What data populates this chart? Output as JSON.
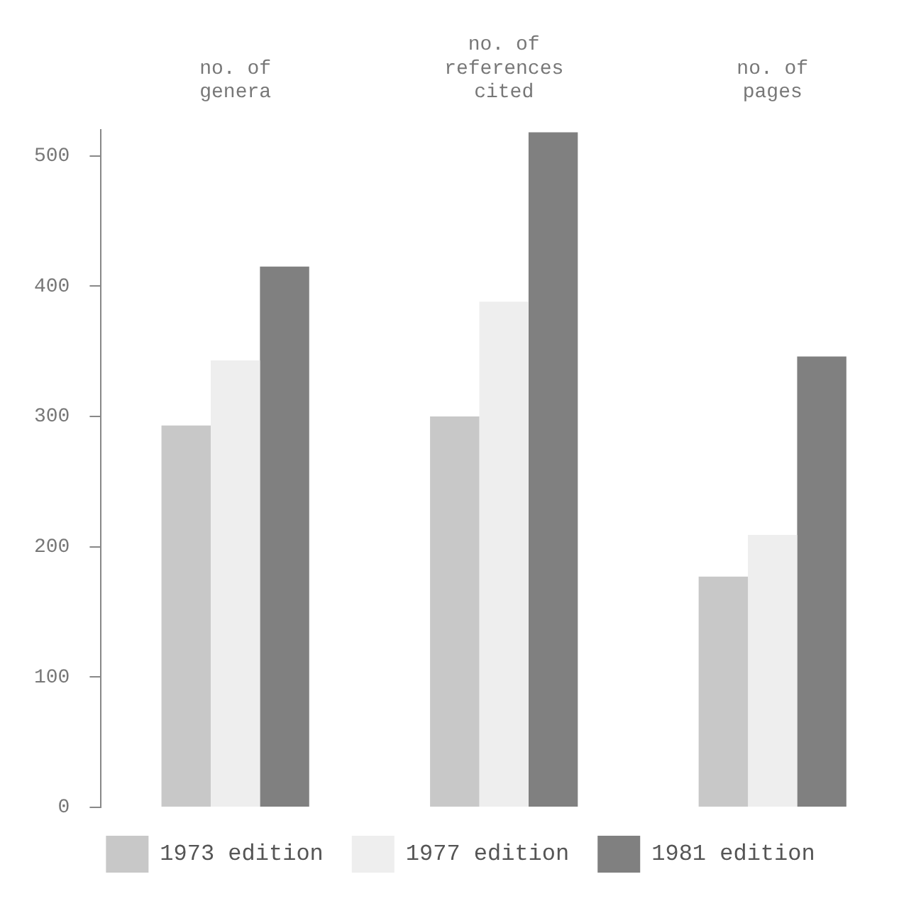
{
  "chart_data": {
    "type": "bar",
    "categories": [
      "no. of genera",
      "no. of references cited",
      "no. of pages"
    ],
    "series": [
      {
        "name": "1973 edition",
        "color": "#c8c8c8",
        "values": [
          293,
          300,
          177
        ]
      },
      {
        "name": "1977 edition",
        "color": "#eeeeee",
        "values": [
          343,
          388,
          209
        ]
      },
      {
        "name": "1981 edition",
        "color": "#808080",
        "values": [
          415,
          518,
          346
        ]
      }
    ],
    "ylim": [
      0,
      520
    ],
    "yticks": [
      0,
      100,
      200,
      300,
      400,
      500
    ],
    "grid": false,
    "legend": "bottom"
  }
}
